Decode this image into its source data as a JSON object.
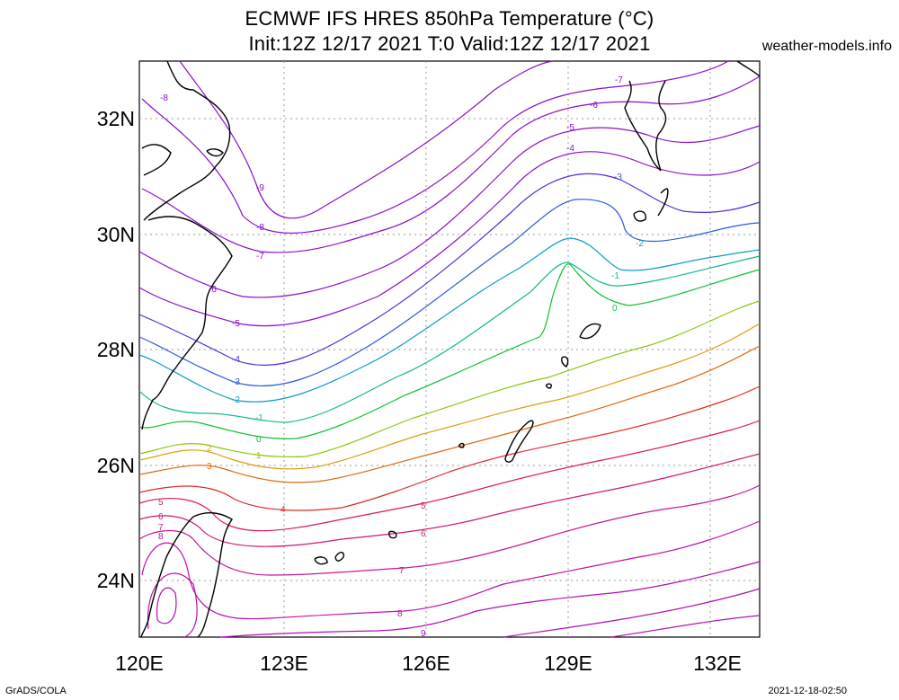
{
  "title_line1": "ECMWF IFS HRES 850hPa Temperature (°C)",
  "title_line2": "Init:12Z 12/17 2021 T:0 Valid:12Z 12/17 2021",
  "credit": "weather-models.info",
  "footer_left": "GrADS/COLA",
  "footer_right": "2021-12-18-02:50",
  "lon_ticks": [
    "120E",
    "123E",
    "126E",
    "129E",
    "132E"
  ],
  "lat_ticks": [
    "32N",
    "30N",
    "28N",
    "26N",
    "24N"
  ],
  "contours": [
    {
      "label": "-9",
      "color": "#8a10c8"
    },
    {
      "label": "-8",
      "color": "#8a10c8"
    },
    {
      "label": "-7",
      "color": "#8a10c8"
    },
    {
      "label": "-6",
      "color": "#8a10c8"
    },
    {
      "label": "-5",
      "color": "#8a10c8"
    },
    {
      "label": "-4",
      "color": "#5a2ad8"
    },
    {
      "label": "-3",
      "color": "#2a5adc"
    },
    {
      "label": "-2",
      "color": "#109ac8"
    },
    {
      "label": "-1",
      "color": "#10b890"
    },
    {
      "label": "0",
      "color": "#10c030"
    },
    {
      "label": "1",
      "color": "#88c810"
    },
    {
      "label": "2",
      "color": "#d8a010"
    },
    {
      "label": "3",
      "color": "#e06810"
    },
    {
      "label": "4",
      "color": "#e02828"
    },
    {
      "label": "5",
      "color": "#d81860"
    },
    {
      "label": "6",
      "color": "#d01878"
    },
    {
      "label": "7",
      "color": "#c81890"
    },
    {
      "label": "8",
      "color": "#c010a8"
    },
    {
      "label": "9",
      "color": "#b010b8"
    }
  ]
}
